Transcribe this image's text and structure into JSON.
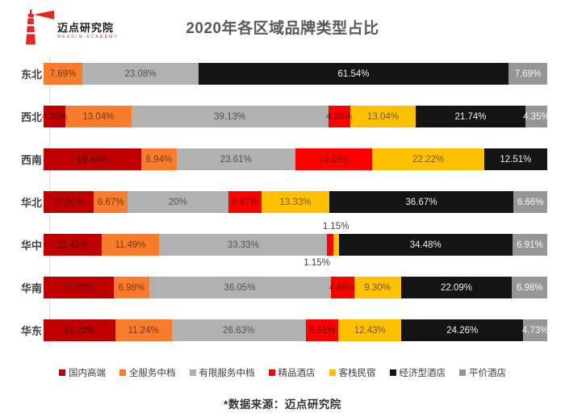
{
  "header": {
    "logo_cn": "迈点研究院",
    "logo_en": "MEADIN ACADEMY",
    "logo_color": "#e8251f",
    "title": "2020年各区域品牌类型占比"
  },
  "chart_data": {
    "type": "bar",
    "stacked": true,
    "horizontal": true,
    "unit": "%",
    "xlim": [
      0,
      100
    ],
    "grid": false,
    "legend_position": "bottom",
    "light_text_series": [
      "经济型酒店",
      "平价酒店"
    ],
    "legend": [
      {
        "name": "国内高端",
        "color": "#C00000"
      },
      {
        "name": "全服务中档",
        "color": "#F87C2B"
      },
      {
        "name": "有限服务中档",
        "color": "#B1B1B1"
      },
      {
        "name": "精品酒店",
        "color": "#FE0000"
      },
      {
        "name": "客栈民宿",
        "color": "#FFC000"
      },
      {
        "name": "经济型酒店",
        "color": "#141414"
      },
      {
        "name": "平价酒店",
        "color": "#969696"
      }
    ],
    "rows": [
      {
        "region": "东北",
        "segments": [
          {
            "series": "全服务中档",
            "value": 7.69,
            "label": "7.69%"
          },
          {
            "series": "有限服务中档",
            "value": 23.08,
            "label": "23.08%"
          },
          {
            "series": "经济型酒店",
            "value": 61.54,
            "label": "61.54%"
          },
          {
            "series": "平价酒店",
            "value": 7.69,
            "label": "7.69%"
          }
        ]
      },
      {
        "region": "西北",
        "segments": [
          {
            "series": "国内高端",
            "value": 4.35,
            "label": "4.35%"
          },
          {
            "series": "全服务中档",
            "value": 13.04,
            "label": "13.04%"
          },
          {
            "series": "有限服务中档",
            "value": 39.13,
            "label": "39.13%"
          },
          {
            "series": "精品酒店",
            "value": 4.35,
            "label": "4.35%"
          },
          {
            "series": "客栈民宿",
            "value": 13.04,
            "label": "13.04%"
          },
          {
            "series": "经济型酒店",
            "value": 21.74,
            "label": "21.74%"
          },
          {
            "series": "平价酒店",
            "value": 4.35,
            "label": "4.35%"
          }
        ]
      },
      {
        "region": "西南",
        "segments": [
          {
            "series": "国内高端",
            "value": 19.44,
            "label": "19.44%"
          },
          {
            "series": "全服务中档",
            "value": 6.94,
            "label": "6.94%"
          },
          {
            "series": "有限服务中档",
            "value": 23.61,
            "label": "23.61%"
          },
          {
            "series": "精品酒店",
            "value": 15.28,
            "label": "15.28%"
          },
          {
            "series": "客栈民宿",
            "value": 22.22,
            "label": "22.22%"
          },
          {
            "series": "经济型酒店",
            "value": 12.51,
            "label": "12.51%"
          }
        ]
      },
      {
        "region": "华北",
        "segments": [
          {
            "series": "国内高端",
            "value": 10.0,
            "label": "10.00%"
          },
          {
            "series": "全服务中档",
            "value": 6.67,
            "label": "6.67%"
          },
          {
            "series": "有限服务中档",
            "value": 20.0,
            "label": "20%"
          },
          {
            "series": "精品酒店",
            "value": 6.67,
            "label": "6.67%"
          },
          {
            "series": "客栈民宿",
            "value": 13.33,
            "label": "13.33%"
          },
          {
            "series": "经济型酒店",
            "value": 36.67,
            "label": "36.67%"
          },
          {
            "series": "平价酒店",
            "value": 6.66,
            "label": "6.66%"
          }
        ]
      },
      {
        "region": "华中",
        "segments": [
          {
            "series": "国内高端",
            "value": 11.49,
            "label": "11.49%"
          },
          {
            "series": "全服务中档",
            "value": 11.49,
            "label": "11.49%"
          },
          {
            "series": "有限服务中档",
            "value": 33.33,
            "label": "33.33%"
          },
          {
            "series": "精品酒店",
            "value": 1.15,
            "label": "1.15%",
            "label_position": "below"
          },
          {
            "series": "客栈民宿",
            "value": 1.15,
            "label": "1.15%",
            "label_position": "above"
          },
          {
            "series": "经济型酒店",
            "value": 34.48,
            "label": "34.48%"
          },
          {
            "series": "平价酒店",
            "value": 6.91,
            "label": "6.91%"
          }
        ]
      },
      {
        "region": "华南",
        "segments": [
          {
            "series": "国内高端",
            "value": 13.95,
            "label": "13.95%"
          },
          {
            "series": "全服务中档",
            "value": 6.98,
            "label": "6.98%"
          },
          {
            "series": "有限服务中档",
            "value": 36.05,
            "label": "36.05%"
          },
          {
            "series": "精品酒店",
            "value": 4.65,
            "label": "4.65%"
          },
          {
            "series": "客栈民宿",
            "value": 9.3,
            "label": "9.30%"
          },
          {
            "series": "经济型酒店",
            "value": 22.09,
            "label": "22.09%"
          },
          {
            "series": "平价酒店",
            "value": 6.98,
            "label": "6.98%"
          }
        ]
      },
      {
        "region": "华东",
        "segments": [
          {
            "series": "国内高端",
            "value": 14.2,
            "label": "14.20%"
          },
          {
            "series": "全服务中档",
            "value": 11.24,
            "label": "11.24%"
          },
          {
            "series": "有限服务中档",
            "value": 26.63,
            "label": "26.63%"
          },
          {
            "series": "精品酒店",
            "value": 6.51,
            "label": "6.51%"
          },
          {
            "series": "客栈民宿",
            "value": 12.43,
            "label": "12.43%"
          },
          {
            "series": "经济型酒店",
            "value": 24.26,
            "label": "24.26%"
          },
          {
            "series": "平价酒店",
            "value": 4.73,
            "label": "4.73%"
          }
        ]
      }
    ]
  },
  "footer": {
    "source": "*数据来源：迈点研究院"
  }
}
